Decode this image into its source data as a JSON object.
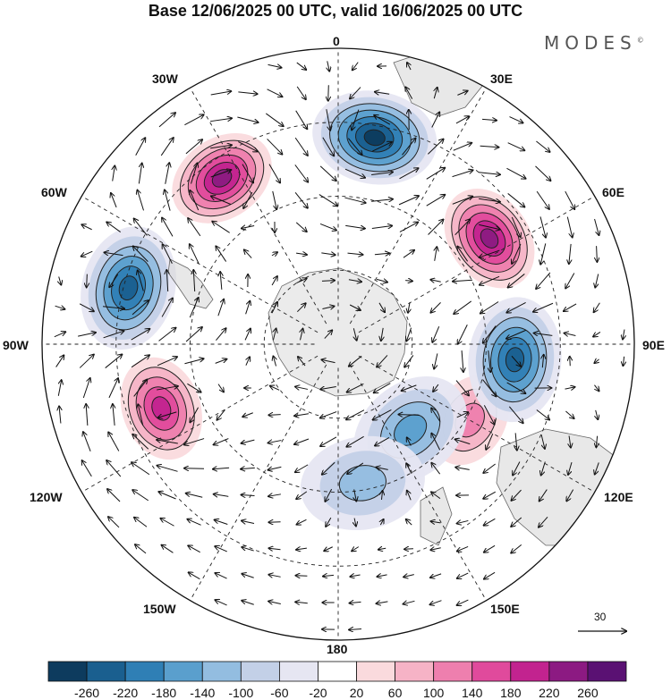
{
  "title": "Base 12/06/2025 00 UTC, valid 16/06/2025 00 UTC",
  "brand": "MODES",
  "brand_mark": "©",
  "longitude_labels": {
    "lon_0": "0",
    "lon_30E": "30E",
    "lon_60E": "60E",
    "lon_90E": "90E",
    "lon_120E": "120E",
    "lon_150E": "150E",
    "lon_180": "180",
    "lon_150W": "150W",
    "lon_120W": "120W",
    "lon_90W": "90W",
    "lon_60W": "60W",
    "lon_30W": "30W"
  },
  "vector_scale_label": "30",
  "colorbar": {
    "ticks": [
      "-260",
      "-220",
      "-180",
      "-140",
      "-100",
      "-60",
      "-20",
      "20",
      "60",
      "100",
      "140",
      "180",
      "220",
      "260"
    ],
    "colors": [
      "#0d3b5e",
      "#1a5f8f",
      "#2f7fb5",
      "#5a9fcd",
      "#93bde0",
      "#c3d0e7",
      "#e6e6f2",
      "#ffffff",
      "#fadadd",
      "#f6b3c6",
      "#ee7fae",
      "#e04a9c",
      "#c2238f",
      "#8c1a82",
      "#5a1173"
    ]
  },
  "anomaly_centers": [
    {
      "type": "positive",
      "value": 220,
      "lon": -35,
      "lat_from_pole": 56
    },
    {
      "type": "positive",
      "value": 220,
      "lon": 55,
      "lat_from_pole": 51
    },
    {
      "type": "positive",
      "value": 200,
      "lon": -110,
      "lat_from_pole": 52
    },
    {
      "type": "positive",
      "value": 120,
      "lon": 120,
      "lat_from_pole": 42
    },
    {
      "type": "negative",
      "value": -220,
      "lon": 10,
      "lat_from_pole": 58
    },
    {
      "type": "negative",
      "value": -200,
      "lon": -75,
      "lat_from_pole": 60
    },
    {
      "type": "negative",
      "value": -200,
      "lon": 95,
      "lat_from_pole": 49
    },
    {
      "type": "negative",
      "value": -100,
      "lon": 140,
      "lat_from_pole": 31
    },
    {
      "type": "negative",
      "value": -80,
      "lon": 170,
      "lat_from_pole": 39
    }
  ]
}
